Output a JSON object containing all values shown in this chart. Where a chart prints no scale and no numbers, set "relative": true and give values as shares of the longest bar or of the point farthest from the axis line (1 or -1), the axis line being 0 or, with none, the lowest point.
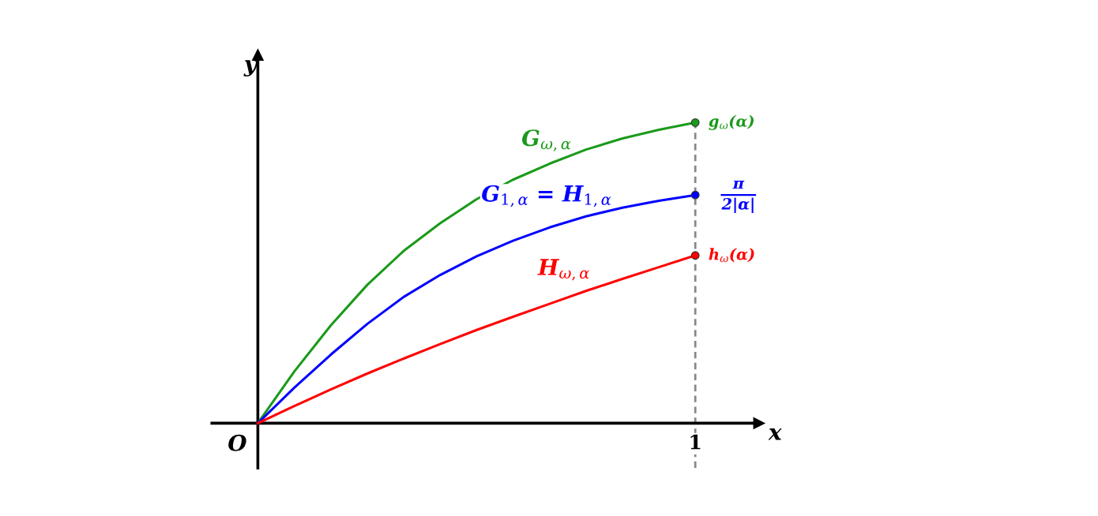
{
  "chart_data": {
    "type": "line",
    "relative": true,
    "xlabel": "x",
    "ylabel": "y",
    "categories": [
      null,
      null,
      null,
      null,
      null,
      null,
      null,
      null,
      null,
      null,
      null,
      null,
      null
    ],
    "series": [
      {
        "color": "#1a9a1a",
        "values": [
          0,
          0.172,
          0.325,
          0.46,
          0.573,
          0.665,
          0.745,
          0.81,
          0.863,
          0.91,
          0.947,
          0.976,
          1
        ]
      },
      {
        "color": "#0000ff",
        "values": [
          0,
          0.118,
          0.228,
          0.33,
          0.42,
          0.493,
          0.555,
          0.607,
          0.651,
          0.688,
          0.717,
          0.74,
          0.759
        ]
      },
      {
        "color": "#ff0000",
        "values": [
          0,
          0.057,
          0.112,
          0.165,
          0.215,
          0.263,
          0.31,
          0.354,
          0.397,
          0.44,
          0.48,
          0.519,
          0.558
        ]
      }
    ],
    "annotations": [
      "G$_{ω,α}$",
      "G$_{1,α}$ = H$_{1,α}$",
      "H$_{ω,α}$",
      "g$_{ω}$(α)",
      "π\n2|α|",
      "h$_{ω}$(α)",
      "O",
      "1"
    ]
  }
}
